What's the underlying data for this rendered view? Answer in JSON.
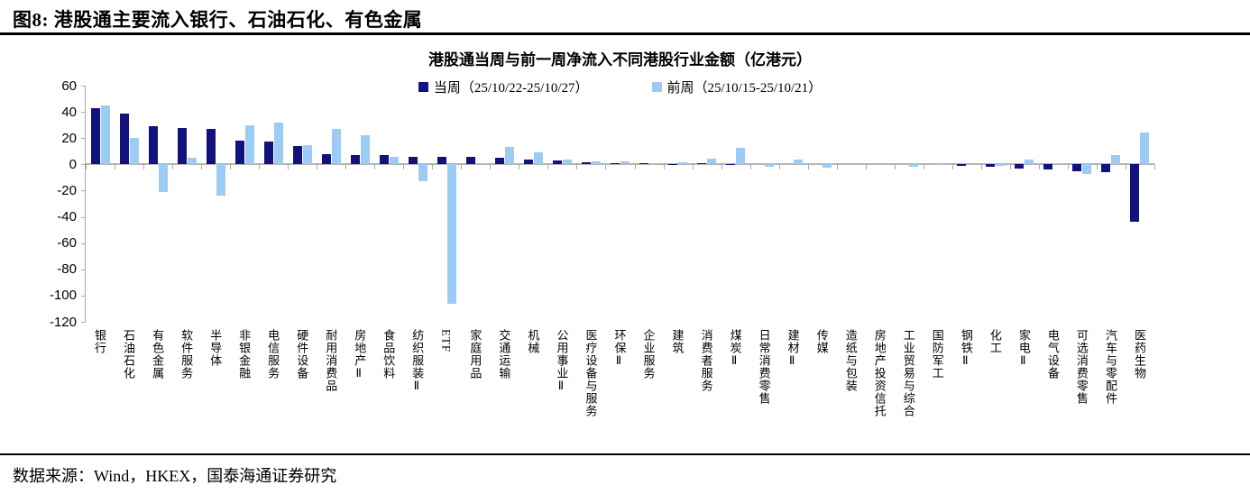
{
  "figure": {
    "header": "图8: 港股通主要流入银行、石油石化、有色金属",
    "source": "数据来源：Wind，HKEX，国泰海通证券研究"
  },
  "chart_data": {
    "type": "bar",
    "title": "港股通当周与前一周净流入不同港股行业金额（亿港元）",
    "categories": [
      "银行",
      "石油石化",
      "有色金属",
      "软件服务",
      "半导体",
      "非银金融",
      "电信服务",
      "硬件设备",
      "耐用消费品",
      "房地产Ⅱ",
      "食品饮料",
      "纺织服装Ⅱ",
      "ETF",
      "家庭用品",
      "交通运输",
      "机械",
      "公用事业Ⅱ",
      "医疗设备与服务",
      "环保Ⅱ",
      "企业服务",
      "建筑",
      "消费者服务",
      "煤炭Ⅱ",
      "日常消费零售",
      "建材Ⅱ",
      "传媒",
      "造纸与包装",
      "房地产投资信托",
      "工业贸易与综合",
      "国防军工",
      "钢铁Ⅱ",
      "化工",
      "家电Ⅱ",
      "电气设备",
      "可选消费零售",
      "汽车与零配件",
      "医药生物"
    ],
    "series": [
      {
        "name": "当周（25/10/22-25/10/27）",
        "color": "#12127F",
        "values": [
          43,
          39,
          29,
          28,
          27,
          18,
          17.5,
          14,
          8,
          7,
          7,
          6,
          6,
          6,
          5,
          4,
          3,
          1.5,
          1,
          0.7,
          0.5,
          1,
          0.5,
          0,
          0,
          0,
          0,
          0,
          0,
          0,
          -1,
          -2,
          -3.5,
          -4,
          -5,
          -6,
          -44
        ]
      },
      {
        "name": "前周（25/10/15-25/10/21）",
        "color": "#9CCBF5",
        "values": [
          45,
          20,
          -21,
          5,
          -24,
          30,
          31.5,
          14.5,
          27,
          22,
          6,
          -13,
          -106,
          1,
          13,
          9,
          4,
          2.5,
          2,
          1,
          1.5,
          4.5,
          12.5,
          -1.5,
          3.5,
          -2.5,
          0,
          0,
          -2,
          -0.5,
          0,
          -1,
          4,
          1,
          -7.5,
          7,
          24.5
        ]
      }
    ],
    "ylim": [
      -120,
      60
    ],
    "yticks": [
      60,
      40,
      20,
      0,
      -20,
      -40,
      -60,
      -80,
      -100,
      -120
    ],
    "xlabel": "",
    "ylabel": "",
    "grid": false,
    "legend_position": "top"
  }
}
